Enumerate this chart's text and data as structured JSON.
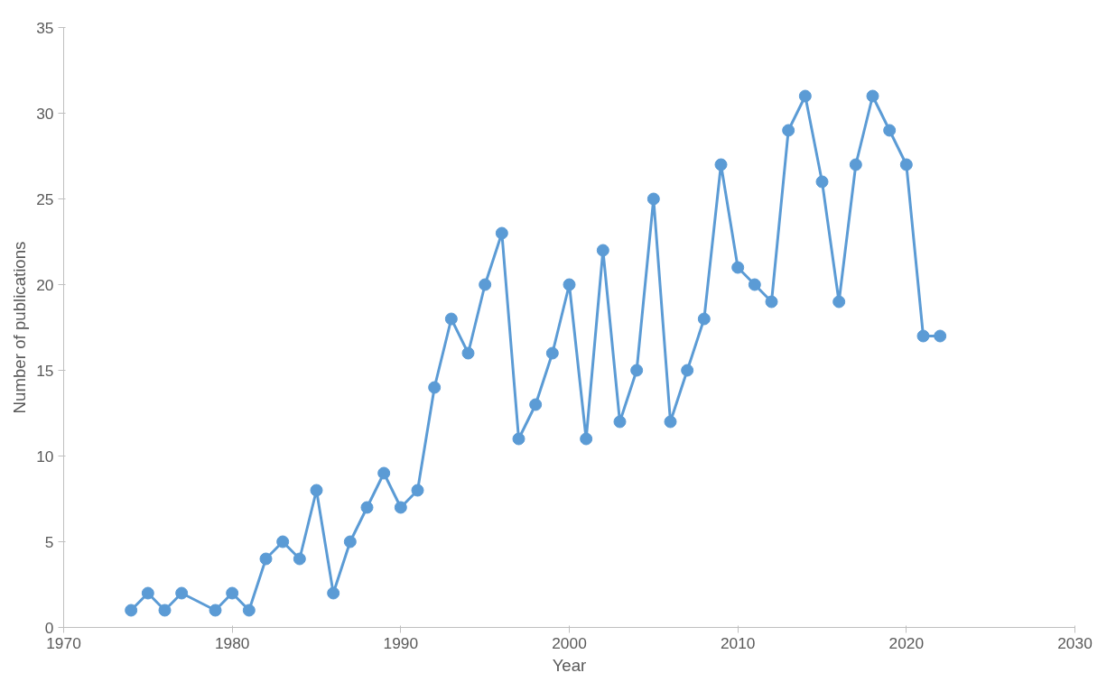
{
  "chart_data": {
    "type": "line",
    "xlabel": "Year",
    "ylabel": "Number of publications",
    "x": [
      1974,
      1975,
      1976,
      1977,
      1979,
      1980,
      1981,
      1982,
      1983,
      1984,
      1985,
      1986,
      1987,
      1988,
      1989,
      1990,
      1991,
      1992,
      1993,
      1994,
      1995,
      1996,
      1997,
      1998,
      1999,
      2000,
      2001,
      2002,
      2003,
      2004,
      2005,
      2006,
      2007,
      2008,
      2009,
      2010,
      2011,
      2012,
      2013,
      2014,
      2015,
      2016,
      2017,
      2018,
      2019,
      2020,
      2021,
      2022
    ],
    "series": [
      {
        "color": "#5b9bd5",
        "values": [
          1,
          2,
          1,
          2,
          1,
          2,
          1,
          4,
          5,
          4,
          8,
          2,
          5,
          7,
          9,
          7,
          8,
          14,
          18,
          16,
          20,
          23,
          11,
          13,
          16,
          20,
          11,
          22,
          12,
          15,
          25,
          12,
          15,
          18,
          27,
          21,
          20,
          19,
          29,
          31,
          26,
          19,
          27,
          31,
          29,
          27,
          17,
          17
        ]
      }
    ],
    "xlim": [
      1970,
      2030
    ],
    "xticks": [
      1970,
      1980,
      1990,
      2000,
      2010,
      2020,
      2030
    ],
    "ylim": [
      0,
      35
    ],
    "yticks": [
      0,
      5,
      10,
      15,
      20,
      25,
      30,
      35
    ],
    "grid": false,
    "marker": "circle",
    "line_style": "solid"
  }
}
